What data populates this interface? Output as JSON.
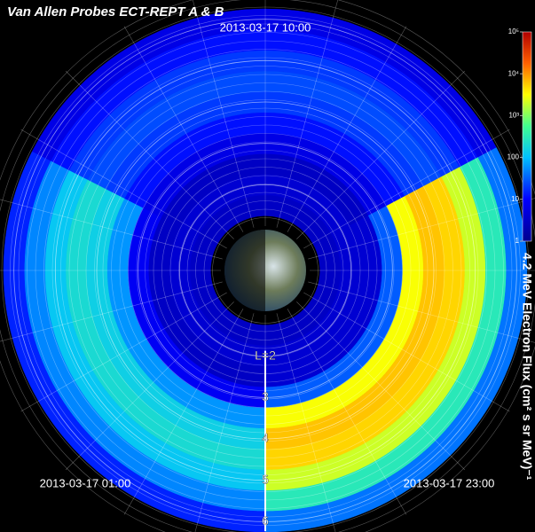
{
  "chart_data": {
    "type": "polar_heatmap",
    "title": "Van Allen Probes ECT-REPT A & B",
    "colorbar_label": "4.2 MeV Electron Flux  (cm² s sr MeV)⁻¹",
    "L": [
      1.5,
      2,
      2.5,
      3,
      3.5,
      4,
      4.5,
      5,
      5.5,
      6
    ],
    "rlim": [
      1,
      6.1
    ],
    "rticks": [
      {
        "value": 2,
        "label": "L=2"
      },
      3,
      4,
      5,
      6
    ],
    "colorbar_log": true,
    "clim": [
      1,
      100000
    ],
    "cticks": [
      1,
      10,
      100,
      {
        "value": 1000,
        "label": "10³"
      },
      {
        "value": 10000,
        "label": "10⁴"
      },
      {
        "value": 100000,
        "label": "10⁵"
      }
    ],
    "sectors": [
      {
        "name": "2013-03-17 10:00",
        "values": [
          3,
          4,
          3,
          6,
          12,
          20,
          25,
          20,
          12,
          6
        ]
      },
      {
        "name": "2013-03-17 01:00",
        "values": [
          3,
          4,
          3,
          8,
          60,
          150,
          200,
          120,
          50,
          15
        ]
      },
      {
        "name": "2013-03-17 23:00",
        "values": [
          3,
          4,
          4,
          30,
          3000,
          6000,
          5000,
          2000,
          300,
          40
        ]
      }
    ]
  }
}
